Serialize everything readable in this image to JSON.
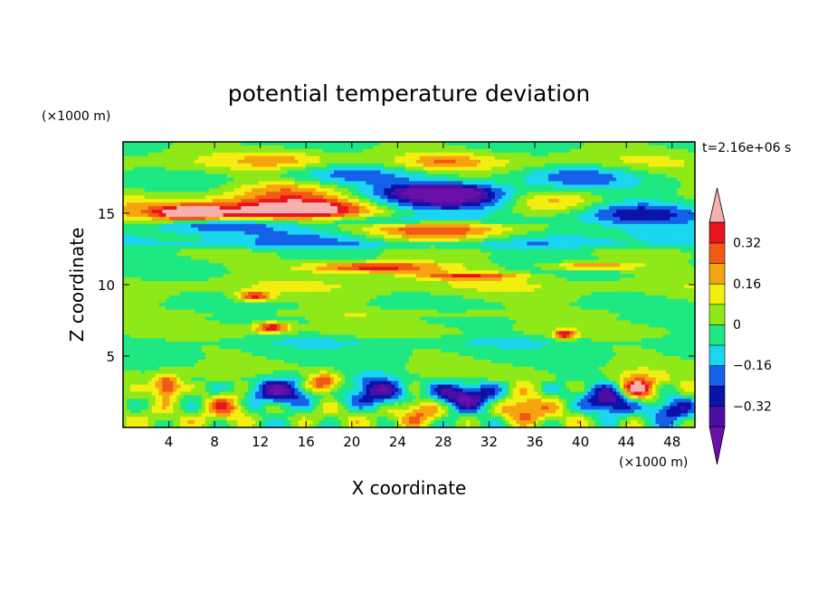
{
  "chart_data": {
    "type": "heatmap",
    "title": "potential temperature deviation",
    "xlabel": "X coordinate",
    "ylabel": "Z coordinate",
    "x_unit": "(×1000 m)",
    "y_unit": "(×1000 m)",
    "time_label": "t=2.16e+06 s",
    "xlim": [
      0,
      50
    ],
    "ylim": [
      0,
      20
    ],
    "x_ticks": [
      4,
      8,
      12,
      16,
      20,
      24,
      28,
      32,
      36,
      40,
      44,
      48
    ],
    "y_ticks": [
      5,
      10,
      15
    ],
    "colorbar": {
      "levels": [
        -0.4,
        -0.32,
        -0.24,
        -0.16,
        -0.08,
        0,
        0.08,
        0.16,
        0.24,
        0.32,
        0.4
      ],
      "tick_labels": [
        "0.32",
        "0.16",
        "0",
        "−0.16",
        "−0.32"
      ],
      "tick_values": [
        0.32,
        0.16,
        0,
        -0.16,
        -0.32
      ],
      "colors": [
        "#6a0fa8",
        "#4b0fa6",
        "#0a13a8",
        "#1560e8",
        "#1ad6ee",
        "#1ee881",
        "#8fe818",
        "#f2ef10",
        "#f5a40f",
        "#f25a14",
        "#e8141e",
        "#f7b0b0"
      ]
    },
    "features": [
      {
        "x": 8.0,
        "z": 15.0,
        "rx": 9.0,
        "rz": 0.9,
        "v": 0.3
      },
      {
        "x": 6.0,
        "z": 15.0,
        "rx": 2.5,
        "rz": 0.4,
        "v": 0.45
      },
      {
        "x": 16.0,
        "z": 15.3,
        "rx": 6.0,
        "rz": 0.8,
        "v": 0.42
      },
      {
        "x": 14.0,
        "z": 16.6,
        "rx": 5.0,
        "rz": 0.7,
        "v": 0.2
      },
      {
        "x": 28.0,
        "z": 13.7,
        "rx": 7.0,
        "rz": 0.9,
        "v": 0.45
      },
      {
        "x": 37.0,
        "z": 15.8,
        "rx": 5.0,
        "rz": 0.8,
        "v": 0.3
      },
      {
        "x": 30.0,
        "z": 15.8,
        "rx": 9.0,
        "rz": 0.8,
        "v": -0.34
      },
      {
        "x": 28.0,
        "z": 16.5,
        "rx": 5.0,
        "rz": 0.6,
        "v": -0.42
      },
      {
        "x": 24.0,
        "z": 14.5,
        "rx": 10.0,
        "rz": 0.4,
        "v": -0.22
      },
      {
        "x": 25.0,
        "z": 13.2,
        "rx": 26.0,
        "rz": 0.7,
        "v": -0.2
      },
      {
        "x": 8.0,
        "z": 14.2,
        "rx": 6.0,
        "rz": 0.5,
        "v": -0.3
      },
      {
        "x": 45.0,
        "z": 15.0,
        "rx": 6.0,
        "rz": 0.8,
        "v": -0.28
      },
      {
        "x": 20.0,
        "z": 17.8,
        "rx": 6.0,
        "rz": 0.8,
        "v": -0.18
      },
      {
        "x": 40.0,
        "z": 17.6,
        "rx": 5.0,
        "rz": 0.8,
        "v": -0.18
      },
      {
        "x": 28.0,
        "z": 18.6,
        "rx": 3.0,
        "rz": 0.6,
        "v": 0.12
      },
      {
        "x": 14.0,
        "z": 18.8,
        "rx": 4.0,
        "rz": 0.7,
        "v": 0.12
      },
      {
        "x": 22.0,
        "z": 11.2,
        "rx": 6.0,
        "rz": 0.4,
        "v": 0.42
      },
      {
        "x": 30.0,
        "z": 10.6,
        "rx": 5.0,
        "rz": 0.25,
        "v": 0.3
      },
      {
        "x": 41.0,
        "z": 11.3,
        "rx": 4.0,
        "rz": 0.3,
        "v": 0.28
      },
      {
        "x": 11.5,
        "z": 9.2,
        "rx": 1.5,
        "rz": 0.35,
        "v": 0.35
      },
      {
        "x": 13.0,
        "z": 7.0,
        "rx": 1.5,
        "rz": 0.35,
        "v": 0.4
      },
      {
        "x": 38.6,
        "z": 6.5,
        "rx": 0.9,
        "rz": 0.3,
        "v": 0.4
      },
      {
        "x": 3.8,
        "z": 2.8,
        "rx": 1.2,
        "rz": 0.8,
        "v": 0.45
      },
      {
        "x": 17.5,
        "z": 3.0,
        "rx": 1.5,
        "rz": 0.7,
        "v": 0.42
      },
      {
        "x": 45.0,
        "z": 2.7,
        "rx": 1.8,
        "rz": 0.9,
        "v": 0.45
      },
      {
        "x": 14.0,
        "z": 2.6,
        "rx": 3.0,
        "rz": 1.0,
        "v": -0.38
      },
      {
        "x": 30.0,
        "z": 2.2,
        "rx": 3.0,
        "rz": 1.0,
        "v": -0.38
      },
      {
        "x": 22.0,
        "z": 2.5,
        "rx": 2.5,
        "rz": 1.2,
        "v": -0.3
      },
      {
        "x": 42.5,
        "z": 1.8,
        "rx": 2.0,
        "rz": 1.0,
        "v": -0.4
      },
      {
        "x": 9.0,
        "z": 1.6,
        "rx": 2.0,
        "rz": 1.0,
        "v": 0.3
      },
      {
        "x": 26.0,
        "z": 1.3,
        "rx": 2.0,
        "rz": 1.0,
        "v": 0.3
      },
      {
        "x": 35.0,
        "z": 1.4,
        "rx": 2.0,
        "rz": 1.0,
        "v": 0.28
      },
      {
        "x": 48.0,
        "z": 1.2,
        "rx": 2.0,
        "rz": 0.8,
        "v": -0.3
      },
      {
        "x": 25.0,
        "z": 18.5,
        "rx": 25.0,
        "rz": 0.6,
        "v": 0.08
      },
      {
        "x": 25.0,
        "z": 10.0,
        "rx": 25.0,
        "rz": 0.5,
        "v": 0.05
      },
      {
        "x": 25.0,
        "z": 8.0,
        "rx": 22.0,
        "rz": 0.3,
        "v": 0.08
      },
      {
        "x": 25.0,
        "z": 6.0,
        "rx": 22.0,
        "rz": 0.4,
        "v": -0.08
      },
      {
        "x": 25.0,
        "z": 12.8,
        "rx": 25.0,
        "rz": 0.3,
        "v": -0.1
      }
    ]
  }
}
